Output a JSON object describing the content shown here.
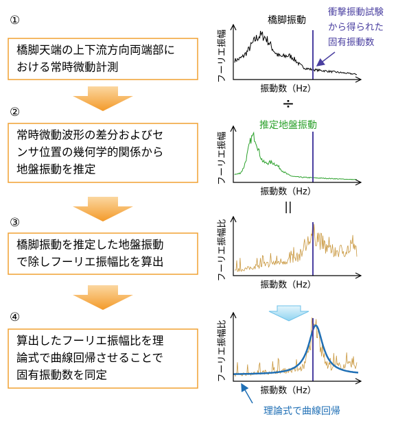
{
  "steps": [
    {
      "number": "①",
      "lines": [
        "橋脚天端の上下流方向両端部に",
        "おける常時微動計測"
      ]
    },
    {
      "number": "②",
      "lines": [
        "常時微動波形の差分およびセ",
        "ンサ位置の幾何学的関係から",
        "地盤振動を推定"
      ]
    },
    {
      "number": "③",
      "lines": [
        "橋脚振動を推定した地盤振動",
        "で除しフーリエ振幅比を算出"
      ]
    },
    {
      "number": "④",
      "lines": [
        "算出したフーリエ振幅比を理",
        "論式で曲線回帰させることで",
        "固有振動数を同定"
      ]
    }
  ],
  "panels": [
    {
      "y_label": "フーリエ振幅",
      "x_label": "振動数（Hz）",
      "annotation": "橋脚振動"
    },
    {
      "y_label": "フーリエ振幅",
      "x_label": "振動数（Hz）",
      "annotation": "推定地盤振動"
    },
    {
      "y_label": "フーリエ振幅比",
      "x_label": "振動数（Hz）"
    },
    {
      "y_label": "フーリエ振幅比",
      "x_label": "振動数（Hz）"
    }
  ],
  "impact_test_note": [
    "衝撃振動試験",
    "から得られた",
    "固有振動数"
  ],
  "divide": "÷",
  "equals": "||",
  "regression_note": "理論式で曲線回帰"
}
